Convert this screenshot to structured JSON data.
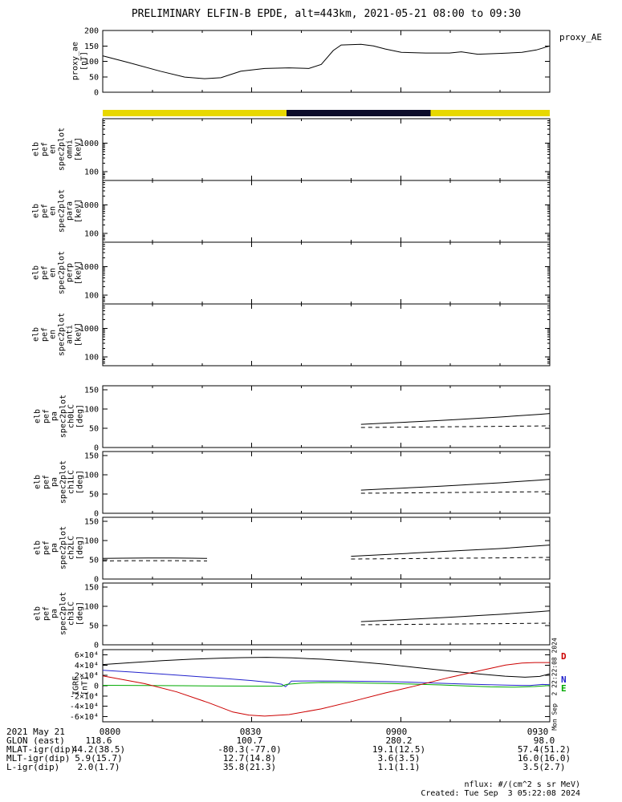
{
  "header": {
    "title": "PRELIMINARY ELFIN-B EPDE, alt=443km, 2021-05-21 08:00 to 09:30"
  },
  "right_labels": {
    "proxy": "proxy_AE",
    "timestamp_vertical": "Mon Sep  2 22:22:08 2024"
  },
  "igrf_legend": [
    {
      "label": "D",
      "color": "#cc0000"
    },
    {
      "label": "N",
      "color": "#2222cc"
    },
    {
      "label": "E",
      "color": "#00aa00"
    }
  ],
  "ylabels": {
    "proxy": "proxy_ae\n[nT]",
    "spec_omni": "elb\npef\nen\nspec2plot\nomni\n[keV]",
    "spec_para": "elb\npef\nen\nspec2plot\npara\n[keV]",
    "spec_perp": "elb\npef\nen\nspec2plot\nperp\n[keV]",
    "spec_anti": "elb\npef\nen\nspec2plot\nanti\n[keV]",
    "pitch_ch0": "elb\npef\npa\nspec2plot\nch0LC\n[deg]",
    "pitch_ch1": "elb\npef\npa\nspec2plot\nch1LC\n[deg]",
    "pitch_ch2": "elb\npef\npa\nspec2plot\nch2LC\n[deg]",
    "pitch_ch3": "elb\npef\npa\nspec2plot\nch3LC\n[deg]",
    "igrf": "IGRF\n[nT]"
  },
  "xaxis": {
    "date": "2021 May 21",
    "labels": [
      "0800",
      "0830",
      "0900",
      "0930"
    ]
  },
  "annotations": [
    {
      "label": "GLON (east)",
      "values": [
        "118.6",
        "100.7",
        "280.2",
        "98.0"
      ]
    },
    {
      "label": "MLAT-igr(dip)",
      "values": [
        "44.2(38.5)",
        "-80.3(-77.0)",
        "19.1(12.5)",
        "57.4(51.2)"
      ]
    },
    {
      "label": "MLT-igr(dip)",
      "values": [
        "5.9(15.7)",
        "12.7(14.8)",
        "3.6(3.5)",
        "16.0(16.0)"
      ]
    },
    {
      "label": "L-igr(dip)",
      "values": [
        "2.0(1.7)",
        "35.8(21.3)",
        "1.1(1.1)",
        "3.5(2.7)"
      ]
    }
  ],
  "footer": {
    "nflux": "nflux: #/(cm^2 s sr MeV)",
    "created": "Created: Tue Sep  3 05:22:08 2024"
  },
  "chart_data": {
    "time_range_minutes_after_0800": [
      0,
      90
    ],
    "x_tick_minutes": [
      0,
      30,
      60,
      90
    ],
    "x_minor_tick_minutes": [
      10,
      20,
      40,
      50,
      70,
      80
    ],
    "panels": [
      {
        "id": "proxy_ae",
        "type": "line",
        "ylabel": "proxy_ae [nT]",
        "ylim": [
          0,
          200
        ],
        "yticks": [
          0,
          50,
          100,
          150,
          200
        ],
        "series": [
          {
            "name": "proxy_AE",
            "color": "#000000",
            "style": "solid",
            "x": [
              0,
              5.2,
              11.6,
              16.5,
              20.5,
              23.8,
              27.8,
              32.6,
              37.5,
              41.5,
              44,
              46.4,
              48,
              52,
              54.5,
              56.9,
              60.1,
              65,
              69.8,
              72.2,
              75.5,
              80.3,
              84.4,
              87.3,
              90
            ],
            "y": [
              118,
              96,
              68,
              49,
              44,
              47,
              68,
              77,
              79,
              77,
              90,
              135,
              153,
              155,
              150,
              140,
              129,
              127,
              127,
              131,
              123,
              126,
              129,
              137,
              150
            ]
          }
        ]
      },
      {
        "id": "sunlight_bar",
        "type": "indicator-bar",
        "segments": [
          {
            "from": 0,
            "to": 37,
            "color": "#e8d800"
          },
          {
            "from": 37,
            "to": 66,
            "color": "#0d0d2b"
          },
          {
            "from": 66,
            "to": 90,
            "color": "#e8d800"
          }
        ]
      },
      {
        "id": "spec_omni",
        "type": "spectrogram",
        "ylabel": "elb pef en spec2plot omni [keV]",
        "yscale": "log",
        "ylim": [
          50,
          7000
        ],
        "yticks": [
          100,
          1000
        ],
        "note": "panel blank - no flux rendered"
      },
      {
        "id": "spec_para",
        "type": "spectrogram",
        "ylabel": "elb pef en spec2plot para [keV]",
        "yscale": "log",
        "ylim": [
          50,
          7000
        ],
        "yticks": [
          100,
          1000
        ],
        "note": "panel blank - no flux rendered"
      },
      {
        "id": "spec_perp",
        "type": "spectrogram",
        "ylabel": "elb pef en spec2plot perp [keV]",
        "yscale": "log",
        "ylim": [
          50,
          7000
        ],
        "yticks": [
          100,
          1000
        ],
        "note": "panel blank - no flux rendered"
      },
      {
        "id": "spec_anti",
        "type": "spectrogram",
        "ylabel": "elb pef en spec2plot anti [keV]",
        "yscale": "log",
        "ylim": [
          50,
          7000
        ],
        "yticks": [
          100,
          1000
        ],
        "note": "panel blank - no flux rendered"
      },
      {
        "id": "pa_ch0LC",
        "type": "line",
        "ylabel": "elb pef pa spec2plot ch0LC [deg]",
        "ylim": [
          0,
          160
        ],
        "yticks": [
          0,
          50,
          100,
          150
        ],
        "series": [
          {
            "name": "losscone",
            "color": "#000000",
            "style": "solid",
            "x": [
              52,
              56,
              60,
              64,
              68,
              72,
              76,
              80,
              84,
              88,
              90
            ],
            "y": [
              60,
              62.5,
              65,
              67.5,
              70,
              73,
              76,
              79,
              82.5,
              86,
              88
            ]
          },
          {
            "name": "antilosscone",
            "color": "#000000",
            "style": "dashed",
            "x": [
              52,
              62,
              72,
              82,
              90
            ],
            "y": [
              52,
              53,
              54,
              55,
              56
            ]
          }
        ]
      },
      {
        "id": "pa_ch1LC",
        "type": "line",
        "ylabel": "elb pef pa spec2plot ch1LC [deg]",
        "ylim": [
          0,
          160
        ],
        "yticks": [
          0,
          50,
          100,
          150
        ],
        "series": [
          {
            "name": "losscone",
            "color": "#000000",
            "style": "solid",
            "x": [
              52,
              56,
              60,
              64,
              68,
              72,
              76,
              80,
              84,
              88,
              90
            ],
            "y": [
              60,
              62.5,
              65,
              67.5,
              70,
              73,
              76,
              79,
              82.5,
              86,
              88
            ]
          },
          {
            "name": "antilosscone",
            "color": "#000000",
            "style": "dashed",
            "x": [
              52,
              62,
              72,
              82,
              90
            ],
            "y": [
              52,
              53,
              54,
              55,
              56
            ]
          }
        ]
      },
      {
        "id": "pa_ch2LC",
        "type": "line",
        "ylabel": "elb pef pa spec2plot ch2LC [deg]",
        "ylim": [
          0,
          160
        ],
        "yticks": [
          0,
          50,
          100,
          150
        ],
        "series": [
          {
            "name": "losscone-left",
            "color": "#000000",
            "style": "solid",
            "x": [
              0,
              4,
              9,
              14,
              18,
              21
            ],
            "y": [
              53.5,
              54,
              54.5,
              54.5,
              54,
              53.5
            ]
          },
          {
            "name": "antilosscone-left",
            "color": "#000000",
            "style": "dashed",
            "x": [
              0,
              7,
              14,
              21
            ],
            "y": [
              47,
              47.5,
              47.5,
              47
            ]
          },
          {
            "name": "losscone",
            "color": "#000000",
            "style": "solid",
            "x": [
              50,
              56,
              62,
              68,
              74,
              80,
              85,
              90
            ],
            "y": [
              59,
              63,
              67,
              71,
              75,
              79,
              83.5,
              88
            ]
          },
          {
            "name": "antilosscone",
            "color": "#000000",
            "style": "dashed",
            "x": [
              50,
              62,
              72,
              82,
              90
            ],
            "y": [
              52,
              53,
              54,
              55,
              56
            ]
          }
        ]
      },
      {
        "id": "pa_ch3LC",
        "type": "line",
        "ylabel": "elb pef pa spec2plot ch3LC [deg]",
        "ylim": [
          0,
          160
        ],
        "yticks": [
          0,
          50,
          100,
          150
        ],
        "series": [
          {
            "name": "losscone",
            "color": "#000000",
            "style": "solid",
            "x": [
              52,
              56,
              60,
              64,
              68,
              72,
              76,
              80,
              84,
              88,
              90
            ],
            "y": [
              60,
              62.5,
              65,
              67.5,
              70,
              73,
              76,
              79,
              82.5,
              86,
              88
            ]
          },
          {
            "name": "antilosscone",
            "color": "#000000",
            "style": "dashed",
            "x": [
              52,
              62,
              72,
              82,
              90
            ],
            "y": [
              52,
              53,
              54,
              55,
              56
            ]
          }
        ]
      },
      {
        "id": "igrf",
        "type": "line",
        "ylabel": "IGRF [nT]",
        "ylim": [
          -70000,
          70000
        ],
        "yticks": [
          60000,
          40000,
          20000,
          0,
          -20000,
          -40000,
          -60000
        ],
        "ytick_labels": [
          "6×10⁴",
          "4×10⁴",
          "2×10⁴",
          "0",
          "-2×10⁴",
          "-4×10⁴",
          "-6×10⁴"
        ],
        "series": [
          {
            "name": "Btotal",
            "color": "#000000",
            "style": "solid",
            "x": [
              0,
              6,
              12,
              18,
              24,
              28,
              33,
              38,
              44,
              50,
              57,
              63,
              70,
              76,
              81,
              85,
              88,
              90
            ],
            "y": [
              41000,
              45000,
              48500,
              51500,
              53500,
              54500,
              55000,
              54000,
              51500,
              47500,
              41500,
              35500,
              28500,
              22500,
              18500,
              16500,
              18000,
              23000
            ]
          },
          {
            "name": "N",
            "color": "#2222cc",
            "style": "solid",
            "x": [
              0,
              6,
              12,
              18,
              24,
              30,
              34,
              36,
              36.8,
              38,
              42,
              47,
              52,
              57,
              62,
              67,
              72,
              77,
              82,
              86,
              88.5,
              90
            ],
            "y": [
              30000,
              26500,
              22500,
              18500,
              14500,
              10000,
              6000,
              3000,
              -2000,
              9000,
              9200,
              9000,
              8600,
              8000,
              6800,
              5200,
              3600,
              2200,
              1000,
              400,
              2500,
              1800
            ]
          },
          {
            "name": "E",
            "color": "#00aa00",
            "style": "solid",
            "x": [
              0,
              8,
              16,
              24,
              32,
              36,
              37,
              40,
              44,
              48,
              53,
              58,
              63,
              68,
              73,
              78,
              83,
              87,
              90
            ],
            "y": [
              800,
              400,
              0,
              -600,
              -800,
              -1000,
              2500,
              5000,
              6200,
              6000,
              5200,
              4300,
              3000,
              1500,
              -500,
              -2200,
              -2800,
              -1500,
              300
            ]
          },
          {
            "name": "D",
            "color": "#cc0000",
            "style": "solid",
            "x": [
              0,
              4.5,
              8.4,
              14.9,
              21.3,
              26.2,
              29.4,
              32.6,
              37.5,
              44,
              50.4,
              56.9,
              63.3,
              69.8,
              76.3,
              81.1,
              84.4,
              87,
              90
            ],
            "y": [
              19000,
              11000,
              4000,
              -12000,
              -33000,
              -51000,
              -57000,
              -59000,
              -56000,
              -45000,
              -30000,
              -14000,
              500,
              16000,
              30000,
              40000,
              44000,
              45000,
              45000
            ]
          }
        ]
      }
    ]
  }
}
